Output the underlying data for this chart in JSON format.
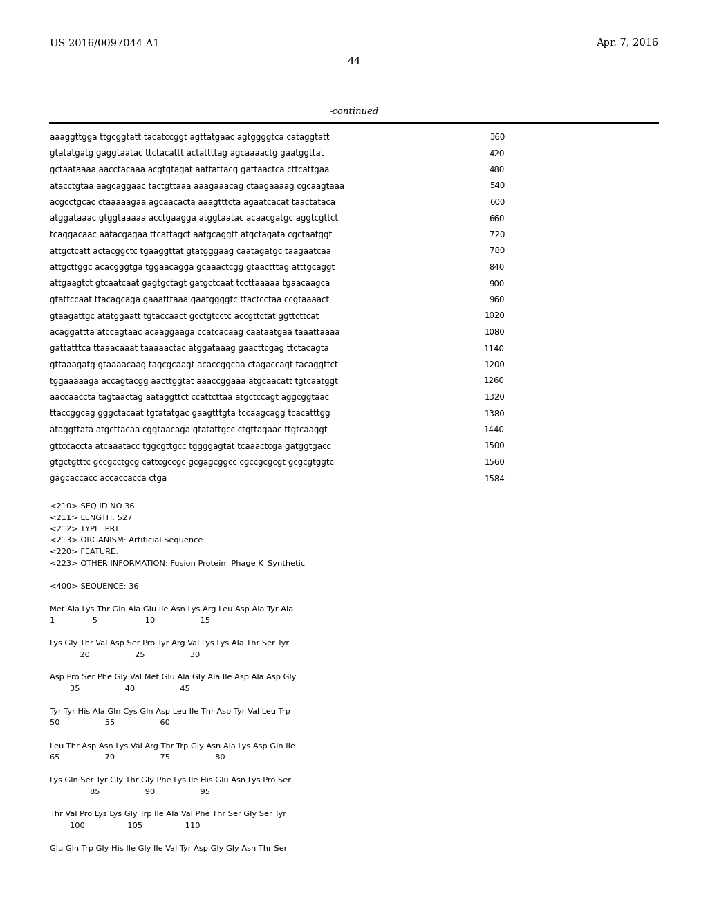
{
  "background_color": "#ffffff",
  "header_left": "US 2016/0097044 A1",
  "header_right": "Apr. 7, 2016",
  "page_number": "44",
  "continued_label": "-continued",
  "sequence_lines": [
    [
      "aaaggttgga ttgcggtatt tacatccggt agttatgaac agtggggtca cataggtatt",
      "360"
    ],
    [
      "gtatatgatg gaggtaatac ttctacattt actattttag agcaaaactg gaatggttat",
      "420"
    ],
    [
      "gctaataaaa aacctacaaa acgtgtagat aattattacg gattaactca cttcattgaa",
      "480"
    ],
    [
      "atacctgtaa aagcaggaac tactgttaaa aaagaaacag ctaagaaaag cgcaagtaaa",
      "540"
    ],
    [
      "acgcctgcac ctaaaaagaa agcaacacta aaagtttcta agaatcacat taactataca",
      "600"
    ],
    [
      "atggataaac gtggtaaaaa acctgaagga atggtaatac acaacgatgc aggtcgttct",
      "660"
    ],
    [
      "tcaggacaac aatacgagaa ttcattagct aatgcaggtt atgctagata cgctaatggt",
      "720"
    ],
    [
      "attgctcatt actacggctc tgaaggttat gtatgggaag caatagatgc taagaatcaa",
      "780"
    ],
    [
      "attgcttggc acacgggtga tggaacagga gcaaactcgg gtaactttag atttgcaggt",
      "840"
    ],
    [
      "attgaagtct gtcaatcaat gagtgctagt gatgctcaat tccttaaaaa tgaacaagca",
      "900"
    ],
    [
      "gtattccaat ttacagcaga gaaatttaaa gaatggggtc ttactcctaa ccgtaaaact",
      "960"
    ],
    [
      "gtaagattgc atatggaatt tgtaccaact gcctgtcctc accgttctat ggttcttcat",
      "1020"
    ],
    [
      "acaggattta atccagtaac acaaggaaga ccatcacaag caataatgaa taaattaaaa",
      "1080"
    ],
    [
      "gattatttca ttaaacaaat taaaaactac atggataaag gaacttcgag ttctacagta",
      "1140"
    ],
    [
      "gttaaagatg gtaaaacaag tagcgcaagt acaccggcaa ctagaccagt tacaggttct",
      "1200"
    ],
    [
      "tggaaaaaga accagtacgg aacttggtat aaaccggaaa atgcaacatt tgtcaatggt",
      "1260"
    ],
    [
      "aaccaaccta tagtaactag aataggttct ccattcttaa atgctccagt aggcggtaac",
      "1320"
    ],
    [
      "ttaccggcag gggctacaat tgtatatgac gaagtttgta tccaagcagg tcacatttgg",
      "1380"
    ],
    [
      "ataggttata atgcttacaa cggtaacaga gtatattgcc ctgttagaac ttgtcaaggt",
      "1440"
    ],
    [
      "gttccaccta atcaaatacc tggcgttgcc tggggagtat tcaaactcga gatggtgacc",
      "1500"
    ],
    [
      "gtgctgtttc gccgcctgcg cattcgccgc gcgagcggcc cgccgcgcgt gcgcgtggtc",
      "1560"
    ],
    [
      "gagcaccacc accaccacca ctga",
      "1584"
    ]
  ],
  "metadata_lines": [
    "<210> SEQ ID NO 36",
    "<211> LENGTH: 527",
    "<212> TYPE: PRT",
    "<213> ORGANISM: Artificial Sequence",
    "<220> FEATURE:",
    "<223> OTHER INFORMATION: Fusion Protein- Phage K- Synthetic",
    "",
    "<400> SEQUENCE: 36",
    "",
    "Met Ala Lys Thr Gln Ala Glu Ile Asn Lys Arg Leu Asp Ala Tyr Ala",
    "1               5                   10                  15",
    "",
    "Lys Gly Thr Val Asp Ser Pro Tyr Arg Val Lys Lys Ala Thr Ser Tyr",
    "            20                  25                  30",
    "",
    "Asp Pro Ser Phe Gly Val Met Glu Ala Gly Ala Ile Asp Ala Asp Gly",
    "        35                  40                  45",
    "",
    "Tyr Tyr His Ala Gln Cys Gln Asp Leu Ile Thr Asp Tyr Val Leu Trp",
    "50                  55                  60",
    "",
    "Leu Thr Asp Asn Lys Val Arg Thr Trp Gly Asn Ala Lys Asp Gln Ile",
    "65                  70                  75                  80",
    "",
    "Lys Gln Ser Tyr Gly Thr Gly Phe Lys Ile His Glu Asn Lys Pro Ser",
    "                85                  90                  95",
    "",
    "Thr Val Pro Lys Lys Gly Trp Ile Ala Val Phe Thr Ser Gly Ser Tyr",
    "        100                 105                 110",
    "",
    "Glu Gln Trp Gly His Ile Gly Ile Val Tyr Asp Gly Gly Asn Thr Ser"
  ]
}
